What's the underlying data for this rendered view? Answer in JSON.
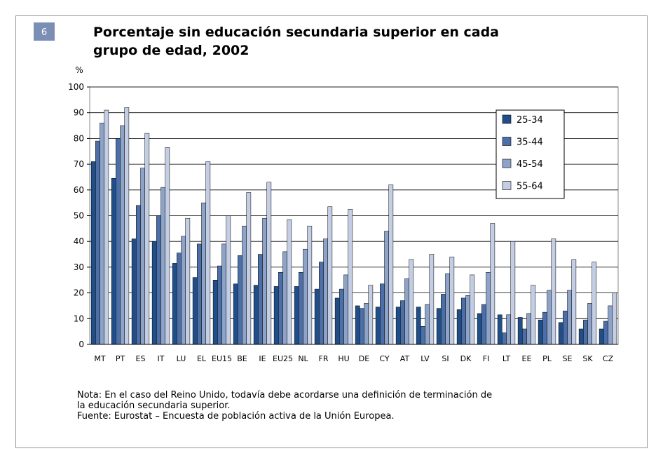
{
  "badge": "6",
  "chart_data": {
    "type": "bar",
    "title_lines": [
      "Porcentaje sin educación secundaria superior en cada",
      "grupo de edad, 2002"
    ],
    "y_label": "%",
    "categories": [
      "MT",
      "PT",
      "ES",
      "IT",
      "LU",
      "EL",
      "EU15",
      "BE",
      "IE",
      "EU25",
      "NL",
      "FR",
      "HU",
      "DE",
      "CY",
      "AT",
      "LV",
      "SI",
      "DK",
      "FI",
      "LT",
      "EE",
      "PL",
      "SE",
      "SK",
      "CZ"
    ],
    "series": [
      {
        "name": "25-34",
        "color": "#1f4e89",
        "values": [
          71,
          64.5,
          41,
          40,
          31.5,
          26,
          25,
          23.5,
          23,
          22.5,
          22.5,
          21.5,
          18,
          15,
          14.5,
          14.5,
          14.5,
          14,
          13.5,
          12,
          11.5,
          10.5,
          9.5,
          8.5,
          6,
          6
        ]
      },
      {
        "name": "35-44",
        "color": "#4c6fa8",
        "values": [
          79,
          80,
          54,
          50,
          35.5,
          39,
          30.5,
          34.5,
          35,
          28,
          28,
          32,
          21.5,
          14,
          23.5,
          17,
          7,
          19.5,
          18,
          15.5,
          4.5,
          6,
          12.5,
          13,
          9.5,
          9
        ]
      },
      {
        "name": "45-54",
        "color": "#8ea3c8",
        "values": [
          86,
          85,
          68.5,
          61,
          42,
          55,
          39,
          46,
          49,
          36,
          37,
          41,
          27,
          16,
          44,
          25.5,
          15.5,
          27.5,
          19,
          28,
          11.5,
          12,
          21,
          21,
          16,
          15
        ]
      },
      {
        "name": "55-64",
        "color": "#c3cde3",
        "values": [
          91,
          92,
          82,
          76.5,
          49,
          71,
          50,
          59,
          63,
          48.5,
          46,
          53.5,
          52.5,
          23,
          62,
          33,
          35,
          34,
          27,
          47,
          40,
          23,
          41,
          33,
          32,
          20
        ]
      }
    ],
    "ylim": [
      0,
      100
    ],
    "yticks": [
      0,
      10,
      20,
      30,
      40,
      50,
      60,
      70,
      80,
      90,
      100
    ],
    "grid": true
  },
  "notes": [
    "Nota: En el caso del Reino Unido, todavía debe acordarse una definición de terminación de",
    "la educación secundaria superior.",
    "Fuente: Eurostat – Encuesta de población activa de la Unión Europea."
  ]
}
